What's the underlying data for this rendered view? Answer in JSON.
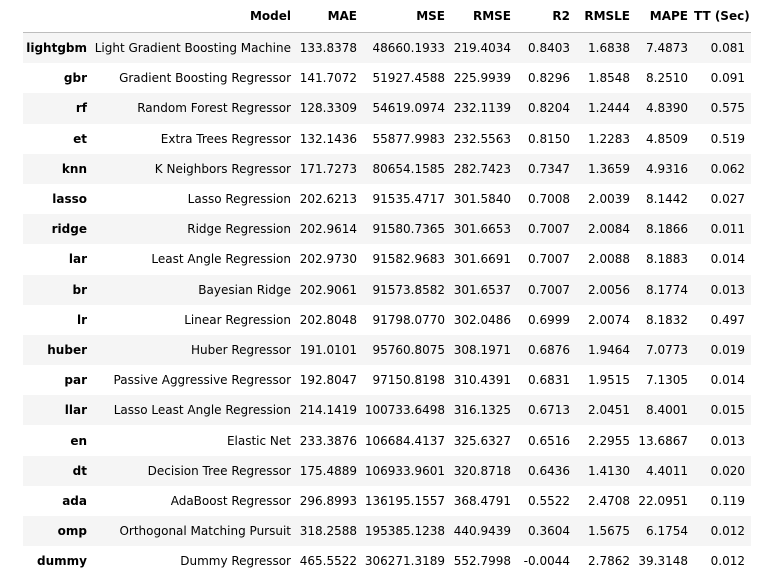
{
  "table": {
    "columns": [
      "Model",
      "MAE",
      "MSE",
      "RMSE",
      "R2",
      "RMSLE",
      "MAPE",
      "TT (Sec)"
    ],
    "rows": [
      {
        "index": "lightgbm",
        "cells": [
          "Light Gradient Boosting Machine",
          "133.8378",
          "48660.1933",
          "219.4034",
          "0.8403",
          "1.6838",
          "7.4873",
          "0.081"
        ]
      },
      {
        "index": "gbr",
        "cells": [
          "Gradient Boosting Regressor",
          "141.7072",
          "51927.4588",
          "225.9939",
          "0.8296",
          "1.8548",
          "8.2510",
          "0.091"
        ]
      },
      {
        "index": "rf",
        "cells": [
          "Random Forest Regressor",
          "128.3309",
          "54619.0974",
          "232.1139",
          "0.8204",
          "1.2444",
          "4.8390",
          "0.575"
        ]
      },
      {
        "index": "et",
        "cells": [
          "Extra Trees Regressor",
          "132.1436",
          "55877.9983",
          "232.5563",
          "0.8150",
          "1.2283",
          "4.8509",
          "0.519"
        ]
      },
      {
        "index": "knn",
        "cells": [
          "K Neighbors Regressor",
          "171.7273",
          "80654.1585",
          "282.7423",
          "0.7347",
          "1.3659",
          "4.9316",
          "0.062"
        ]
      },
      {
        "index": "lasso",
        "cells": [
          "Lasso Regression",
          "202.6213",
          "91535.4717",
          "301.5840",
          "0.7008",
          "2.0039",
          "8.1442",
          "0.027"
        ]
      },
      {
        "index": "ridge",
        "cells": [
          "Ridge Regression",
          "202.9614",
          "91580.7365",
          "301.6653",
          "0.7007",
          "2.0084",
          "8.1866",
          "0.011"
        ]
      },
      {
        "index": "lar",
        "cells": [
          "Least Angle Regression",
          "202.9730",
          "91582.9683",
          "301.6691",
          "0.7007",
          "2.0088",
          "8.1883",
          "0.014"
        ]
      },
      {
        "index": "br",
        "cells": [
          "Bayesian Ridge",
          "202.9061",
          "91573.8582",
          "301.6537",
          "0.7007",
          "2.0056",
          "8.1774",
          "0.013"
        ]
      },
      {
        "index": "lr",
        "cells": [
          "Linear Regression",
          "202.8048",
          "91798.0770",
          "302.0486",
          "0.6999",
          "2.0074",
          "8.1832",
          "0.497"
        ]
      },
      {
        "index": "huber",
        "cells": [
          "Huber Regressor",
          "191.0101",
          "95760.8075",
          "308.1971",
          "0.6876",
          "1.9464",
          "7.0773",
          "0.019"
        ]
      },
      {
        "index": "par",
        "cells": [
          "Passive Aggressive Regressor",
          "192.8047",
          "97150.8198",
          "310.4391",
          "0.6831",
          "1.9515",
          "7.1305",
          "0.014"
        ]
      },
      {
        "index": "llar",
        "cells": [
          "Lasso Least Angle Regression",
          "214.1419",
          "100733.6498",
          "316.1325",
          "0.6713",
          "2.0451",
          "8.4001",
          "0.015"
        ]
      },
      {
        "index": "en",
        "cells": [
          "Elastic Net",
          "233.3876",
          "106684.4137",
          "325.6327",
          "0.6516",
          "2.2955",
          "13.6867",
          "0.013"
        ]
      },
      {
        "index": "dt",
        "cells": [
          "Decision Tree Regressor",
          "175.4889",
          "106933.9601",
          "320.8718",
          "0.6436",
          "1.4130",
          "4.4011",
          "0.020"
        ]
      },
      {
        "index": "ada",
        "cells": [
          "AdaBoost Regressor",
          "296.8993",
          "136195.1557",
          "368.4791",
          "0.5522",
          "2.4708",
          "22.0951",
          "0.119"
        ]
      },
      {
        "index": "omp",
        "cells": [
          "Orthogonal Matching Pursuit",
          "318.2588",
          "195385.1238",
          "440.9439",
          "0.3604",
          "1.5675",
          "6.1754",
          "0.012"
        ]
      },
      {
        "index": "dummy",
        "cells": [
          "Dummy Regressor",
          "465.5522",
          "306271.3189",
          "552.7998",
          "-0.0044",
          "2.7862",
          "39.3148",
          "0.012"
        ]
      }
    ]
  }
}
